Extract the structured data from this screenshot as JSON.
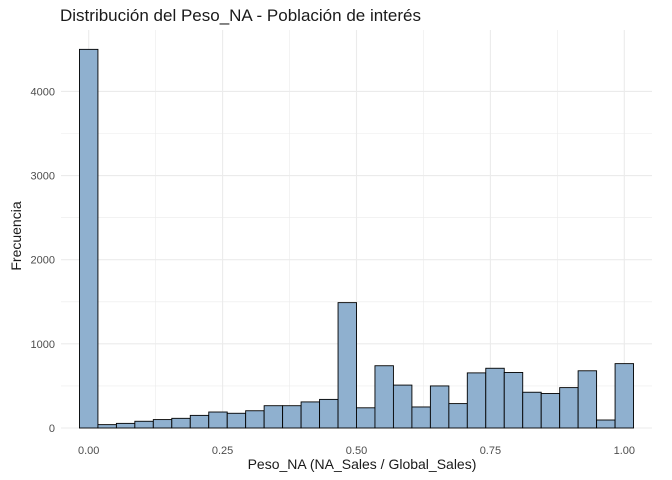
{
  "chart_data": {
    "type": "bar",
    "title": "Distribución del Peso_NA - Población de interés",
    "xlabel": "Peso_NA (NA_Sales / Global_Sales)",
    "ylabel": "Frecuencia",
    "xlim": [
      -0.0517,
      1.0517
    ],
    "ylim": [
      0,
      4730
    ],
    "grid": true,
    "x_ticks": [
      0.0,
      0.25,
      0.5,
      0.75,
      1.0
    ],
    "x_tick_labels": [
      "0.00",
      "0.25",
      "0.50",
      "0.75",
      "1.00"
    ],
    "y_ticks": [
      0,
      1000,
      2000,
      3000,
      4000
    ],
    "y_tick_labels": [
      "0",
      "1000",
      "2000",
      "3000",
      "4000"
    ],
    "bin_width": 0.0345,
    "bin_centers": [
      0.0,
      0.0345,
      0.069,
      0.1034,
      0.1379,
      0.1724,
      0.2069,
      0.2414,
      0.2759,
      0.3103,
      0.3448,
      0.3793,
      0.4138,
      0.4483,
      0.4828,
      0.5172,
      0.5517,
      0.5862,
      0.6207,
      0.6552,
      0.6897,
      0.7241,
      0.7586,
      0.7931,
      0.8276,
      0.8621,
      0.8966,
      0.931,
      0.9655,
      1.0
    ],
    "values": [
      4500,
      40,
      55,
      80,
      100,
      115,
      150,
      190,
      175,
      205,
      265,
      265,
      310,
      340,
      1490,
      240,
      740,
      510,
      250,
      500,
      290,
      655,
      710,
      660,
      425,
      410,
      480,
      680,
      95,
      765
    ],
    "fill_color": "#8fb0cf",
    "border_color": "#000000",
    "grid_color": "#ebebeb"
  }
}
